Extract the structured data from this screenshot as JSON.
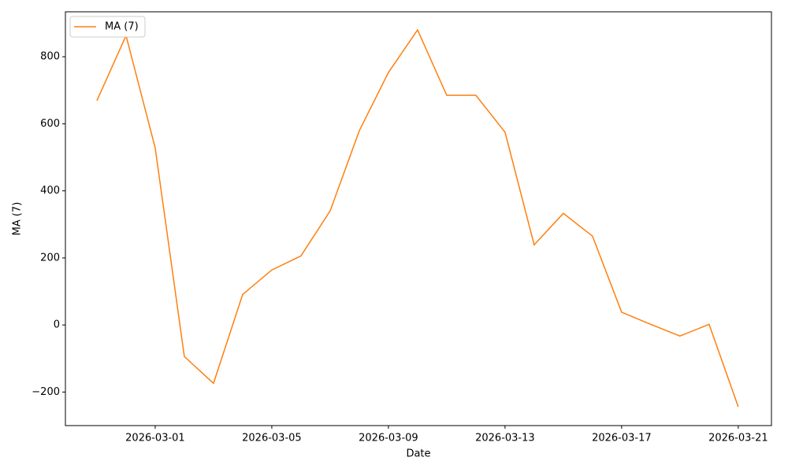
{
  "chart_data": {
    "type": "line",
    "xlabel": "Date",
    "ylabel": "MA (7)",
    "x": [
      "2026-02-27",
      "2026-02-28",
      "2026-03-01",
      "2026-03-02",
      "2026-03-03",
      "2026-03-04",
      "2026-03-05",
      "2026-03-06",
      "2026-03-07",
      "2026-03-08",
      "2026-03-09",
      "2026-03-10",
      "2026-03-11",
      "2026-03-12",
      "2026-03-13",
      "2026-03-14",
      "2026-03-15",
      "2026-03-16",
      "2026-03-17",
      "2026-03-18",
      "2026-03-19",
      "2026-03-20",
      "2026-03-21"
    ],
    "series": [
      {
        "name": "MA (7)",
        "color": "#ff7f0e",
        "values": [
          669,
          863,
          528,
          -94,
          -174,
          91,
          164,
          206,
          340,
          579,
          753,
          880,
          685,
          685,
          575,
          239,
          333,
          265,
          38,
          2,
          -33,
          2,
          -244
        ]
      }
    ],
    "xlim": [
      "2026-02-25T22:05:00Z",
      "2026-03-22T03:20:00Z"
    ],
    "xticks": [
      "2026-03-01",
      "2026-03-05",
      "2026-03-09",
      "2026-03-13",
      "2026-03-17",
      "2026-03-21"
    ],
    "ylim": [
      -300,
      934
    ],
    "yticks": [
      {
        "value": -200,
        "label": "−200"
      },
      0,
      200,
      400,
      600,
      800
    ],
    "grid": false,
    "legend": "upper left"
  }
}
